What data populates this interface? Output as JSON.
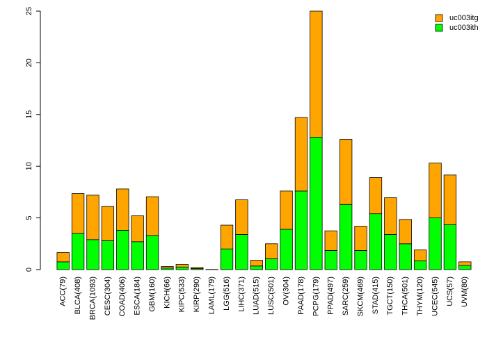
{
  "chart_data": {
    "type": "bar",
    "stacked": true,
    "categories": [
      "ACC(79)",
      "BLCA(408)",
      "BRCA(1093)",
      "CESC(304)",
      "COAD(406)",
      "ESCA(184)",
      "GBM(160)",
      "KICH(66)",
      "KIPC(533)",
      "KIRP(290)",
      "LAML(179)",
      "LGG(516)",
      "LIHC(371)",
      "LUAD(515)",
      "LUSC(501)",
      "OV(304)",
      "PAAD(178)",
      "PCPG(179)",
      "PPAD(497)",
      "SARC(259)",
      "SKCM(469)",
      "STAD(415)",
      "TGCT(150)",
      "THCA(501)",
      "THYM(120)",
      "UCEC(545)",
      "UCS(57)",
      "UVM(80)"
    ],
    "series": [
      {
        "name": "uc003ith",
        "color": "#00ff00",
        "values": [
          0.75,
          3.5,
          2.9,
          2.8,
          3.8,
          2.7,
          3.3,
          0.15,
          0.25,
          0.1,
          0.02,
          2.0,
          3.4,
          0.35,
          1.05,
          3.9,
          7.6,
          12.8,
          1.85,
          6.3,
          1.85,
          5.4,
          3.4,
          2.5,
          0.85,
          5.0,
          4.35,
          0.4
        ]
      },
      {
        "name": "uc003itg",
        "color": "#ffa500",
        "values": [
          0.9,
          3.85,
          4.3,
          3.3,
          4.0,
          2.5,
          3.75,
          0.15,
          0.25,
          0.1,
          0.0,
          2.3,
          3.35,
          0.55,
          1.45,
          3.7,
          7.1,
          12.2,
          1.9,
          6.3,
          2.35,
          3.5,
          3.55,
          2.35,
          1.05,
          5.3,
          4.8,
          0.35
        ]
      }
    ],
    "ylim": [
      0,
      25
    ],
    "yticks": [
      0,
      5,
      10,
      15,
      20,
      25
    ],
    "legend_position": "top-right",
    "legend_order": [
      "uc003itg",
      "uc003ith"
    ]
  }
}
